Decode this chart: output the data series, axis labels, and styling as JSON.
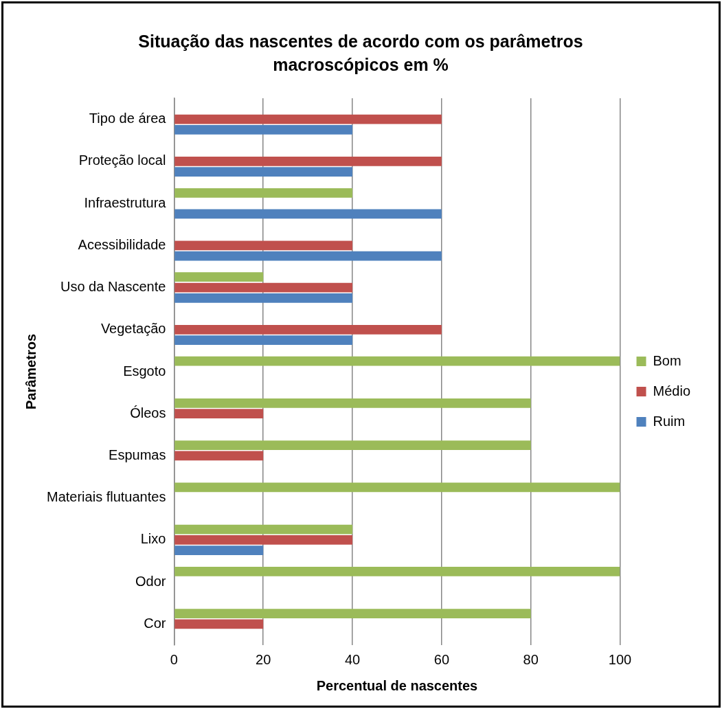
{
  "chart_data": {
    "type": "bar",
    "orientation": "horizontal",
    "title": "Situação das nascentes de acordo com os parâmetros macroscópicos em %",
    "xlabel": "Percentual de nascentes",
    "ylabel": "Parâmetros",
    "categories": [
      "Tipo de área",
      "Proteção local",
      "Infraestrutura",
      "Acessibilidade",
      "Uso da Nascente",
      "Vegetação",
      "Esgoto",
      "Óleos",
      "Espumas",
      "Materiais flutuantes",
      "Lixo",
      "Odor",
      "Cor"
    ],
    "series": [
      {
        "name": "Bom",
        "color": "#9bbb59",
        "values": [
          0,
          0,
          40,
          0,
          20,
          0,
          100,
          80,
          80,
          100,
          40,
          100,
          80
        ]
      },
      {
        "name": "Médio",
        "color": "#c0504d",
        "values": [
          60,
          60,
          0,
          40,
          40,
          60,
          0,
          20,
          20,
          0,
          40,
          0,
          20
        ]
      },
      {
        "name": "Ruim",
        "color": "#4f81bd",
        "values": [
          40,
          40,
          60,
          60,
          40,
          40,
          0,
          0,
          0,
          0,
          20,
          0,
          0
        ]
      }
    ],
    "xlim": [
      0,
      100
    ],
    "xticks": [
      0,
      20,
      40,
      60,
      80,
      100
    ],
    "grid": "x",
    "legend": "right"
  }
}
